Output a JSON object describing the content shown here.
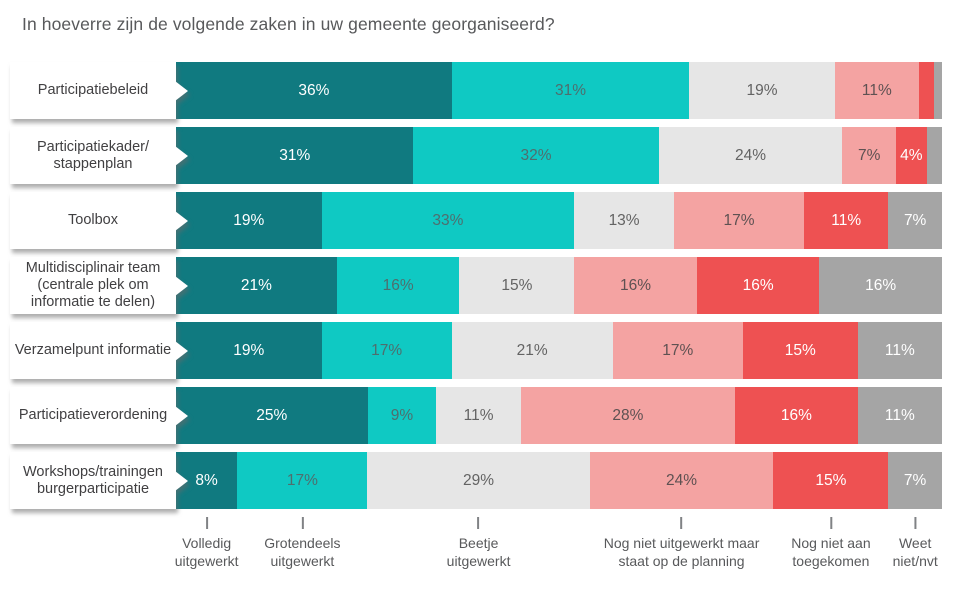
{
  "title": "In hoeverre zijn de volgende zaken in uw gemeente georganiseerd?",
  "chart_data": {
    "type": "bar",
    "orientation": "horizontal",
    "stacked": true,
    "value_unit": "%",
    "x_range": [
      0,
      100
    ],
    "grid": false,
    "legend_position": "bottom",
    "series": [
      {
        "name": "Volledig uitgewerkt",
        "color": "#107a80",
        "text_color": "#ffffff"
      },
      {
        "name": "Grotendeels uitgewerkt",
        "color": "#0fc9c3",
        "text_color": "#4e6e6e"
      },
      {
        "name": "Beetje uitgewerkt",
        "color": "#e6e6e6",
        "text_color": "#636363"
      },
      {
        "name": "Nog niet uitgewerkt maar staat op de planning",
        "color": "#f4a3a2",
        "text_color": "#5e5152"
      },
      {
        "name": "Nog niet aan toegekomen",
        "color": "#ee5152",
        "text_color": "#ffffff"
      },
      {
        "name": "Weet niet/nvt",
        "color": "#a5a5a5",
        "text_color": "#ffffff"
      }
    ],
    "rows": [
      {
        "category": "Participatiebeleid",
        "values": [
          36,
          31,
          19,
          11,
          2,
          1
        ],
        "labels": [
          "36%",
          "31%",
          "19%",
          "11%",
          "",
          ""
        ]
      },
      {
        "category": "Participatiekader/\nstappenplan",
        "values": [
          31,
          32,
          24,
          7,
          4,
          2
        ],
        "labels": [
          "31%",
          "32%",
          "24%",
          "7%",
          "4%",
          ""
        ]
      },
      {
        "category": "Toolbox",
        "values": [
          19,
          33,
          13,
          17,
          11,
          7
        ],
        "labels": [
          "19%",
          "33%",
          "13%",
          "17%",
          "11%",
          "7%"
        ]
      },
      {
        "category": "Multidisciplinair team\n(centrale plek om\ninformatie te delen)",
        "values": [
          21,
          16,
          15,
          16,
          16,
          16
        ],
        "labels": [
          "21%",
          "16%",
          "15%",
          "16%",
          "16%",
          "16%"
        ]
      },
      {
        "category": "Verzamelpunt informatie",
        "values": [
          19,
          17,
          21,
          17,
          15,
          11
        ],
        "labels": [
          "19%",
          "17%",
          "21%",
          "17%",
          "15%",
          "11%"
        ]
      },
      {
        "category": "Participatieverordening",
        "values": [
          25,
          9,
          11,
          28,
          16,
          11
        ],
        "labels": [
          "25%",
          "9%",
          "11%",
          "28%",
          "16%",
          "11%"
        ]
      },
      {
        "category": "Workshops/trainingen\nburgerparticipatie",
        "values": [
          8,
          17,
          29,
          24,
          15,
          7
        ],
        "labels": [
          "8%",
          "17%",
          "29%",
          "24%",
          "15%",
          "7%"
        ]
      }
    ],
    "legend_labels": [
      "Volledig\nuitgewerkt",
      "Grotendeels\nuitgewerkt",
      "Beetje\nuitgewerkt",
      "Nog niet uitgewerkt maar\nstaat op de planning",
      "Nog niet aan\ntoegekomen",
      "Weet\nniet/nvt"
    ]
  }
}
